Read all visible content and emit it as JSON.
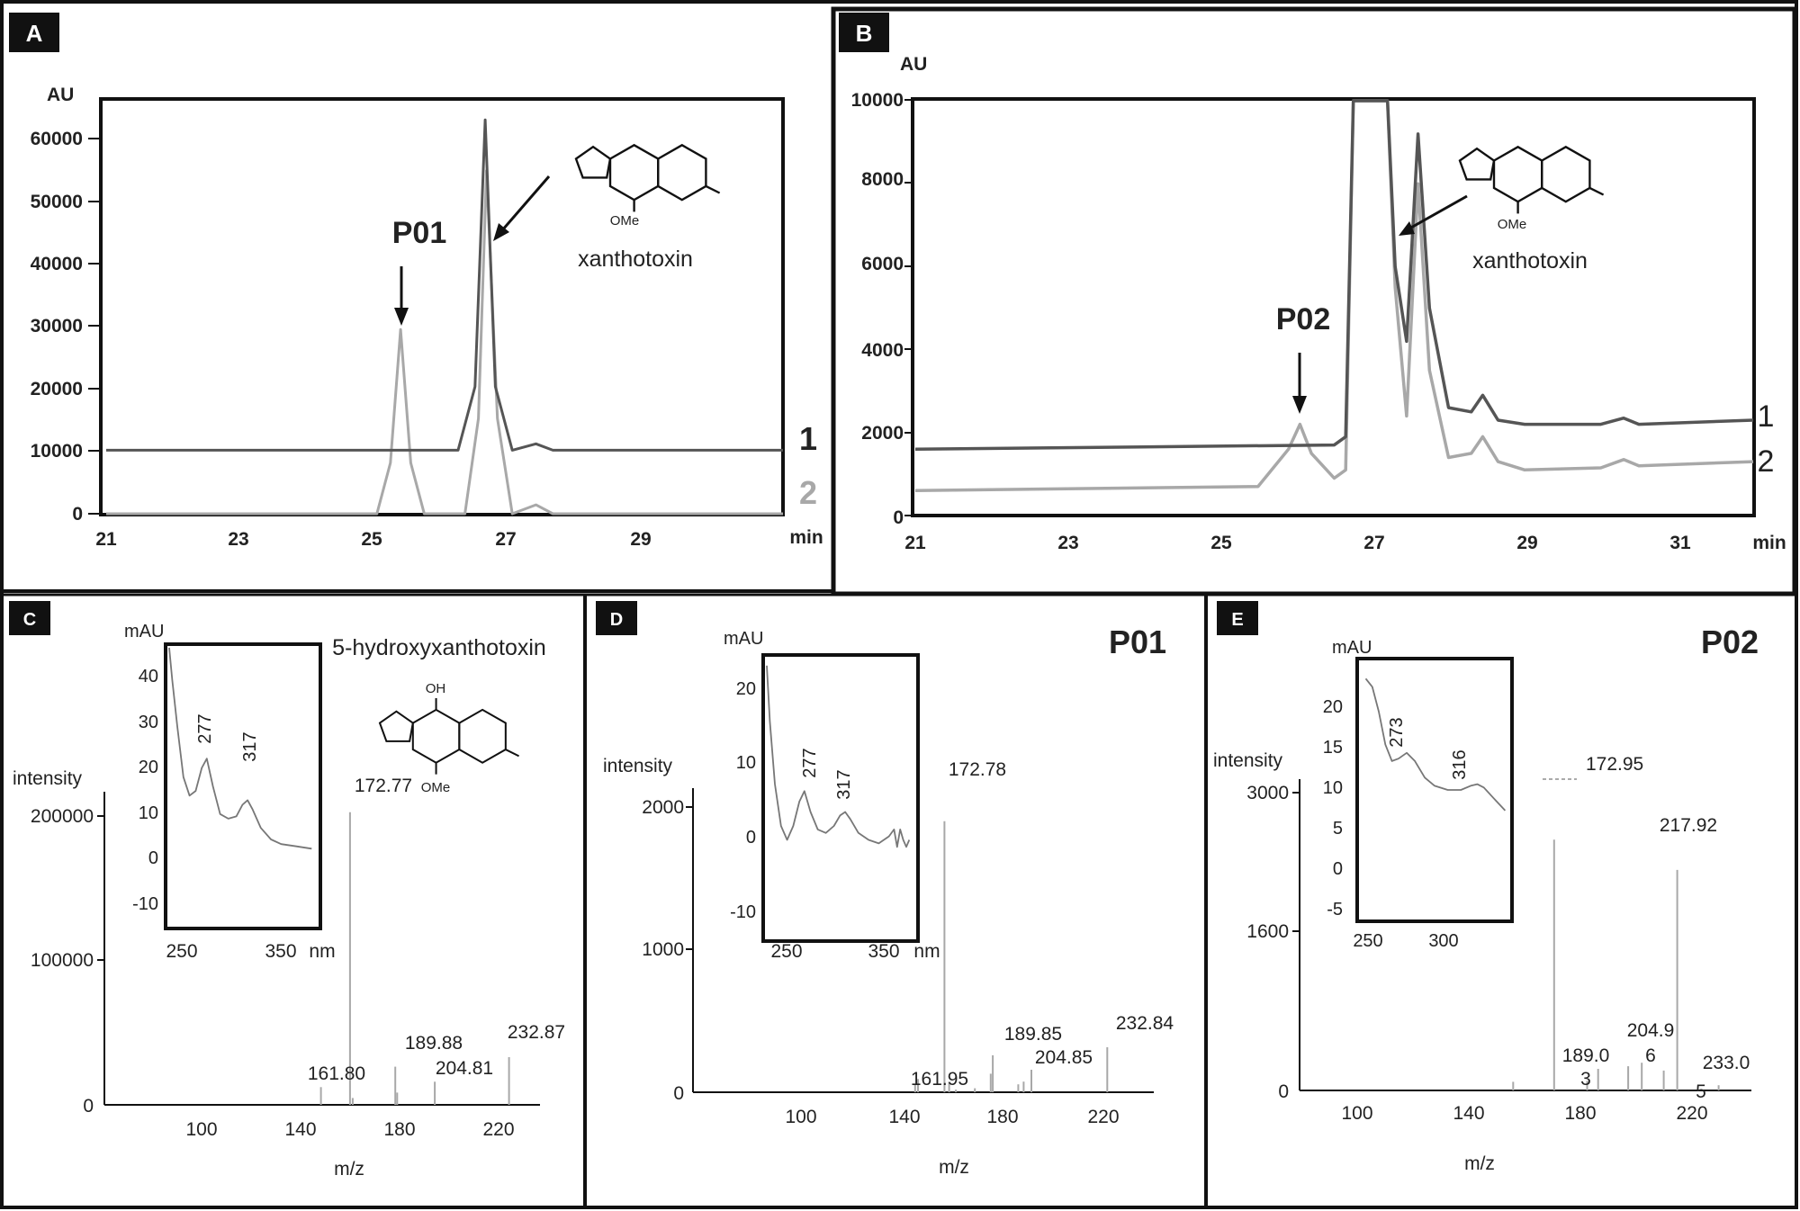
{
  "panels": {
    "A": {
      "letter": "A",
      "y_unit": "AU",
      "x_unit": "min",
      "y_ticks": [
        "60000",
        "50000",
        "40000",
        "30000",
        "20000",
        "10000",
        "0"
      ],
      "x_ticks": [
        "21",
        "23",
        "25",
        "27",
        "29"
      ],
      "peak_label": "P01",
      "compound": "xanthotoxin",
      "ome": "OMe",
      "trace_labels": [
        "1",
        "2"
      ]
    },
    "B": {
      "letter": "B",
      "y_unit": "AU",
      "x_unit": "min",
      "y_ticks": [
        "10000",
        "8000",
        "6000",
        "4000",
        "2000",
        "0"
      ],
      "x_ticks": [
        "21",
        "23",
        "25",
        "27",
        "29",
        "31"
      ],
      "peak_label": "P02",
      "compound": "xanthotoxin",
      "ome": "OMe",
      "trace_labels": [
        "1",
        "2"
      ]
    },
    "C": {
      "letter": "C",
      "title": "5-hydroxyxanthotoxin",
      "oh": "OH",
      "ome": "OMe",
      "y_unit": "intensity",
      "x_unit": "m/z",
      "y_ticks": [
        "200000",
        "100000",
        "0"
      ],
      "x_ticks": [
        "100",
        "140",
        "180",
        "220"
      ],
      "peaks": [
        "172.77",
        "161.80",
        "189.88",
        "204.81",
        "232.87"
      ],
      "inset": {
        "y_unit": "mAU",
        "y_ticks": [
          "40",
          "30",
          "20",
          "10",
          "0",
          "-10"
        ],
        "x_ticks": [
          "250",
          "350"
        ],
        "x_unit": "nm",
        "maxima": [
          "277",
          "317"
        ]
      }
    },
    "D": {
      "letter": "D",
      "title": "P01",
      "y_unit": "intensity",
      "x_unit": "m/z",
      "y_ticks": [
        "2000",
        "1000",
        "0"
      ],
      "x_ticks": [
        "100",
        "140",
        "180",
        "220"
      ],
      "peaks": [
        "172.78",
        "161.95",
        "189.85",
        "204.85",
        "232.84"
      ],
      "inset": {
        "y_unit": "mAU",
        "y_ticks": [
          "20",
          "10",
          "0",
          "-10"
        ],
        "x_ticks": [
          "250",
          "350"
        ],
        "x_unit": "nm",
        "maxima": [
          "277",
          "317"
        ]
      }
    },
    "E": {
      "letter": "E",
      "title": "P02",
      "y_unit": "intensity",
      "x_unit": "m/z",
      "y_ticks": [
        "3000",
        "1600",
        "0"
      ],
      "x_ticks": [
        "100",
        "140",
        "180",
        "220"
      ],
      "peaks": [
        "172.95",
        "217.92",
        "204.9",
        "6",
        "189.0",
        "3",
        "233.0",
        "5"
      ],
      "inset": {
        "y_unit": "mAU",
        "y_ticks": [
          "20",
          "15",
          "10",
          "5",
          "0",
          "-5"
        ],
        "x_ticks": [
          "250",
          "300"
        ],
        "maxima": [
          "273",
          "316"
        ]
      }
    }
  },
  "chart_data": [
    {
      "type": "line",
      "panel": "A",
      "xlabel": "min",
      "ylabel": "AU",
      "xlim": [
        21,
        31
      ],
      "ylim": [
        0,
        65000
      ],
      "series": [
        {
          "name": "1",
          "color": "#555555",
          "x": [
            21,
            26.2,
            26.45,
            26.6,
            26.75,
            27.0,
            27.35,
            27.6,
            31
          ],
          "y": [
            10000,
            10000,
            20000,
            62000,
            20000,
            10000,
            11000,
            10000,
            10000
          ]
        },
        {
          "name": "2",
          "color": "#a8a8a8",
          "x": [
            21,
            25.0,
            25.2,
            25.35,
            25.5,
            25.7,
            26.3,
            26.5,
            26.62,
            26.78,
            27.0,
            27.35,
            27.6,
            31
          ],
          "y": [
            0,
            0,
            8000,
            29000,
            8000,
            0,
            0,
            15000,
            54000,
            15000,
            0,
            1400,
            0,
            0
          ]
        }
      ],
      "annotations": [
        "P01",
        "xanthotoxin"
      ]
    },
    {
      "type": "line",
      "panel": "B",
      "xlabel": "min",
      "ylabel": "AU",
      "xlim": [
        21,
        32
      ],
      "ylim": [
        0,
        10000
      ],
      "series": [
        {
          "name": "1",
          "color": "#555555",
          "x": [
            21,
            26.5,
            26.65,
            26.75,
            27.2,
            27.3,
            27.45,
            27.6,
            27.75,
            28.0,
            28.3,
            28.45,
            28.65,
            29.0,
            30.0,
            30.3,
            30.5,
            32
          ],
          "y": [
            1600,
            1700,
            1900,
            10000,
            10000,
            6000,
            4200,
            9200,
            5000,
            2600,
            2500,
            2900,
            2300,
            2200,
            2200,
            2350,
            2200,
            2300
          ]
        },
        {
          "name": "2",
          "color": "#a8a8a8",
          "x": [
            21,
            25.5,
            25.9,
            26.05,
            26.2,
            26.5,
            26.65,
            26.75,
            27.2,
            27.3,
            27.45,
            27.6,
            27.75,
            28.0,
            28.3,
            28.45,
            28.65,
            29.0,
            30.0,
            30.3,
            30.5,
            32
          ],
          "y": [
            600,
            700,
            1600,
            2200,
            1500,
            900,
            1100,
            10000,
            10000,
            5500,
            2400,
            8000,
            3500,
            1400,
            1500,
            1900,
            1300,
            1100,
            1150,
            1350,
            1200,
            1300
          ]
        }
      ],
      "annotations": [
        "P02",
        "xanthotoxin"
      ]
    },
    {
      "type": "bar",
      "panel": "C",
      "title": "5-hydroxyxanthotoxin",
      "xlabel": "m/z",
      "ylabel": "intensity",
      "xlim": [
        80,
        250
      ],
      "ylim": [
        0,
        230000
      ],
      "x": [
        161.8,
        172.77,
        173.8,
        189.88,
        190.6,
        204.81,
        232.87
      ],
      "y": [
        13000,
        215000,
        5000,
        28000,
        9000,
        17000,
        35000
      ],
      "inset": {
        "type": "line",
        "xlabel": "nm",
        "ylabel": "mAU",
        "xlim": [
          240,
          385
        ],
        "ylim": [
          -15,
          45
        ],
        "x": [
          240,
          243,
          248,
          254,
          260,
          266,
          272,
          277,
          283,
          290,
          298,
          306,
          312,
          317,
          322,
          330,
          340,
          350,
          365,
          380
        ],
        "y": [
          46,
          38,
          28,
          17,
          13,
          14,
          19,
          21,
          15,
          9,
          8,
          8.5,
          11,
          12,
          10,
          6,
          3.5,
          2.5,
          2,
          1.5
        ]
      }
    },
    {
      "type": "bar",
      "panel": "D",
      "title": "P01",
      "xlabel": "m/z",
      "ylabel": "intensity",
      "xlim": [
        80,
        250
      ],
      "ylim": [
        0,
        2300
      ],
      "x": [
        161.95,
        163,
        172.78,
        174.5,
        177,
        184,
        189.85,
        190.6,
        200,
        202,
        204.85,
        232.84
      ],
      "y": [
        60,
        100,
        2050,
        80,
        20,
        30,
        140,
        280,
        60,
        80,
        170,
        340
      ],
      "inset": {
        "type": "line",
        "xlabel": "nm",
        "ylabel": "mAU",
        "xlim": [
          240,
          385
        ],
        "ylim": [
          -15,
          25
        ],
        "x": [
          240,
          243,
          248,
          254,
          260,
          266,
          272,
          277,
          283,
          290,
          298,
          306,
          312,
          317,
          322,
          330,
          340,
          350,
          360,
          365,
          368,
          371,
          374,
          377,
          380
        ],
        "y": [
          24,
          16,
          7,
          1,
          -1,
          1,
          4.5,
          6,
          3,
          0.5,
          0,
          1,
          2.5,
          3,
          2,
          0,
          -1,
          -1.5,
          -0.5,
          0.5,
          -2,
          0.5,
          -1,
          -2,
          -1
        ]
      }
    },
    {
      "type": "bar",
      "panel": "E",
      "title": "P02",
      "xlabel": "m/z",
      "ylabel": "intensity",
      "xlim": [
        80,
        245
      ],
      "ylim": [
        0,
        3600
      ],
      "x": [
        158,
        172.95,
        185,
        189.03,
        200,
        204.96,
        213,
        217.92,
        233.05
      ],
      "y": [
        100,
        2900,
        110,
        250,
        280,
        320,
        230,
        2550,
        60
      ],
      "inset": {
        "type": "line",
        "xlabel": "nm",
        "ylabel": "mAU",
        "xlim": [
          245,
          335
        ],
        "ylim": [
          -6,
          25
        ],
        "x": [
          248,
          252,
          256,
          260,
          264,
          268,
          273,
          278,
          284,
          290,
          298,
          306,
          312,
          316,
          320,
          326,
          333
        ],
        "y": [
          23,
          22,
          19,
          15,
          13,
          13.3,
          14,
          13,
          11,
          10,
          9.5,
          9.5,
          10,
          10.2,
          9.8,
          8.5,
          7
        ]
      }
    }
  ]
}
